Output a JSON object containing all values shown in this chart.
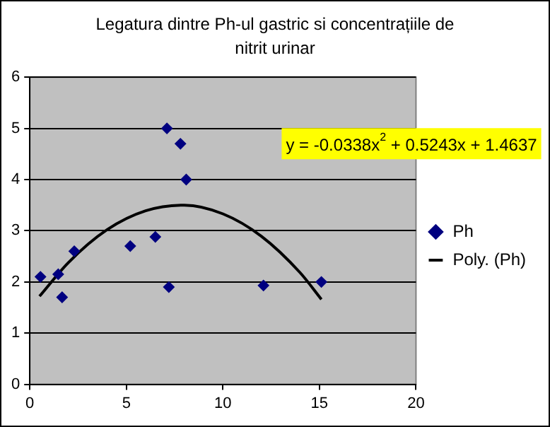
{
  "chart_data": {
    "type": "scatter",
    "title": "Legatura dintre Ph-ul gastric si concentrațiile de nitrit urinar",
    "series": [
      {
        "name": "Ph",
        "marker": "diamond",
        "color": "#000080",
        "x": [
          0.55,
          1.47,
          1.67,
          2.3,
          5.2,
          6.5,
          7.1,
          7.2,
          7.8,
          8.1,
          12.1,
          15.1
        ],
        "values": [
          2.1,
          2.15,
          1.7,
          2.6,
          2.7,
          2.88,
          5.0,
          1.9,
          4.7,
          4.0,
          1.93,
          2.0
        ]
      },
      {
        "name": "Poly. (Ph)",
        "type": "line",
        "marker": "none",
        "line_style": "solid",
        "color": "#000000",
        "x": [
          0.5,
          2,
          4,
          6,
          8,
          10,
          12,
          14,
          15.1
        ],
        "values": [
          1.72,
          2.38,
          3.02,
          3.39,
          3.5,
          3.33,
          2.89,
          2.18,
          1.66
        ]
      }
    ],
    "xlim": [
      0,
      20
    ],
    "xticks": [
      0,
      5,
      10,
      15,
      20
    ],
    "ylim": [
      0,
      6
    ],
    "yticks": [
      0,
      1,
      2,
      3,
      4,
      5,
      6
    ],
    "grid": "y",
    "legend": "right",
    "annotations": [
      "y = -0.0338x$^{2}$ + 0.5243x + 1.4637"
    ]
  }
}
